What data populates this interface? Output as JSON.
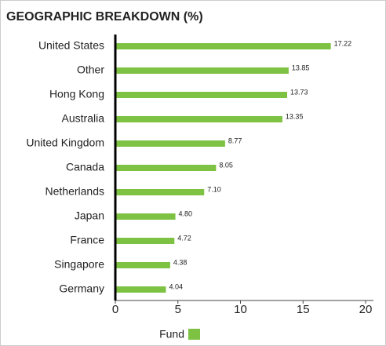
{
  "chart_data": {
    "type": "bar",
    "orientation": "horizontal",
    "title": "GEOGRAPHIC BREAKDOWN (%)",
    "categories": [
      "United States",
      "Other",
      "Hong Kong",
      "Australia",
      "United Kingdom",
      "Canada",
      "Netherlands",
      "Japan",
      "France",
      "Singapore",
      "Germany"
    ],
    "series": [
      {
        "name": "Fund",
        "color": "#7dc242",
        "values": [
          17.22,
          13.85,
          13.73,
          13.35,
          8.77,
          8.05,
          7.1,
          4.8,
          4.72,
          4.38,
          4.04
        ],
        "value_labels": [
          "17.22",
          "13.85",
          "13.73",
          "13.35",
          "8.77",
          "8.05",
          "7.10",
          "4.80",
          "4.72",
          "4.38",
          "4.04"
        ]
      }
    ],
    "xlim": [
      0,
      20
    ],
    "xticks": [
      0,
      5,
      10,
      15,
      20
    ],
    "grid": false,
    "legend": "bottom"
  }
}
